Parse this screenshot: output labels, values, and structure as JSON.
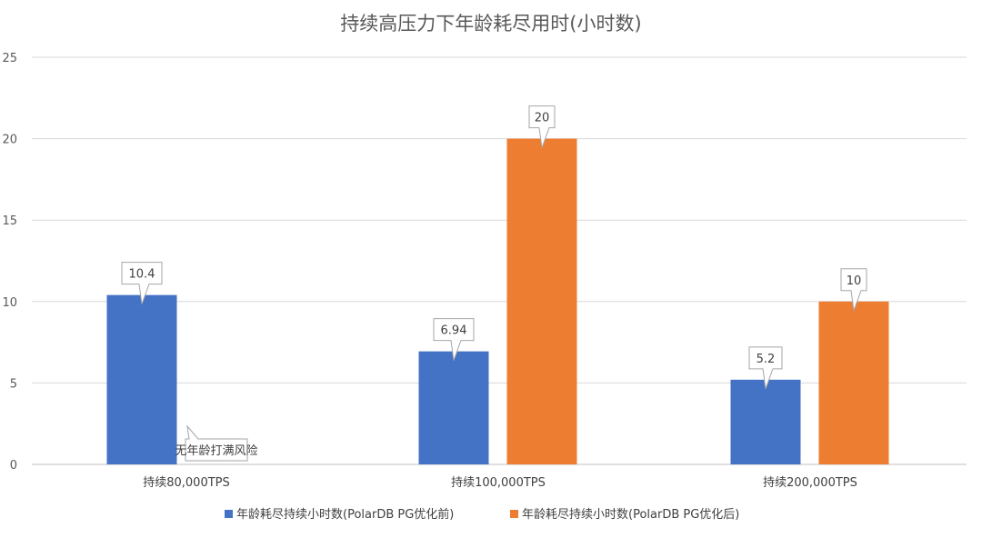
{
  "chart_data": {
    "type": "bar",
    "title": "持续高压力下年龄耗尽用时(小时数)",
    "xlabel": "",
    "ylabel": "",
    "ylim": [
      0,
      25
    ],
    "yticks": [
      0,
      5,
      10,
      15,
      20,
      25
    ],
    "grid": true,
    "legend_position": "bottom",
    "categories": [
      "持续80,000TPS",
      "持续100,000TPS",
      "持续200,000TPS"
    ],
    "series": [
      {
        "name": "年龄耗尽持续小时数(PolarDB PG优化前)",
        "color": "#4472C4",
        "values": [
          10.4,
          6.94,
          5.2
        ],
        "labels": [
          "10.4",
          "6.94",
          "5.2"
        ]
      },
      {
        "name": "年龄耗尽持续小时数(PolarDB PG优化后)",
        "color": "#ED7D31",
        "values": [
          null,
          20,
          10
        ],
        "labels": [
          "",
          "20",
          "10"
        ]
      }
    ],
    "annotations": [
      {
        "category_index": 0,
        "series_index": 1,
        "text": "无年龄打满风险"
      }
    ]
  }
}
